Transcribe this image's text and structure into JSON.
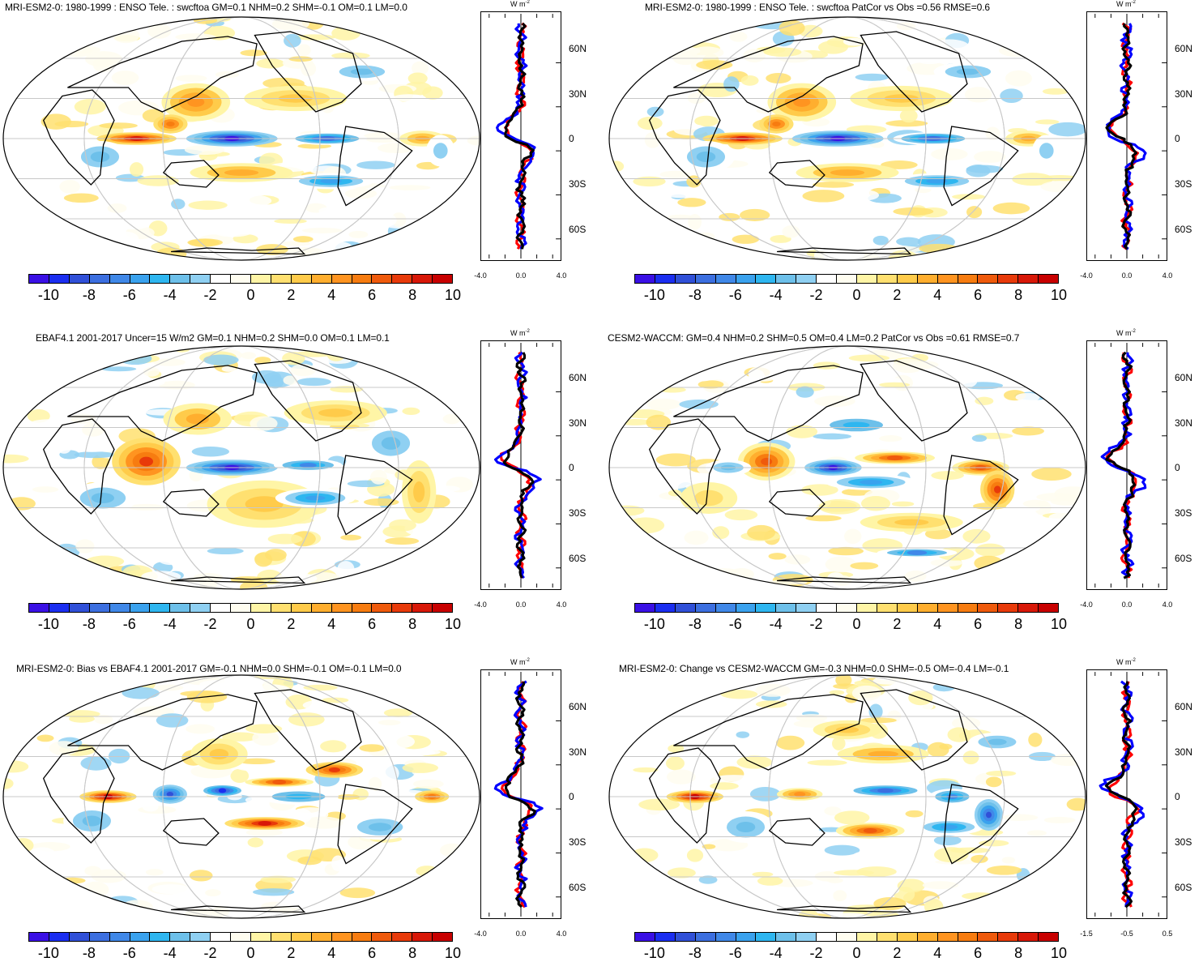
{
  "colorbar": {
    "colors": [
      "#3a10e5",
      "#1b2ef0",
      "#3050d8",
      "#3c6fe0",
      "#4088e8",
      "#3aa2ee",
      "#2eb6f0",
      "#6dc0ea",
      "#8fd0f2",
      "#ffffff",
      "#fffdf0",
      "#fff5a6",
      "#ffe070",
      "#ffcb4a",
      "#ffae2e",
      "#ff9420",
      "#f77c10",
      "#ef5a0c",
      "#e83a0a",
      "#d81808",
      "#c80000"
    ],
    "labels": [
      "-10",
      "-8",
      "-6",
      "-4",
      "-2",
      "0",
      "2",
      "4",
      "6",
      "8",
      "10"
    ]
  },
  "zonal_axis": {
    "unit_base": "W m",
    "unit_exp": "-2",
    "lat_labels": [
      "60N",
      "30N",
      "0",
      "30S",
      "60S"
    ]
  },
  "series_colors": {
    "model": "#0000ff",
    "obs": "#ff0000",
    "black": "#000000"
  },
  "panels": [
    {
      "title": "MRI-ESM2-0: 1980-1999 : ENSO Tele. : swcftoa GM=0.1 NHM=0.2 SHM=-0.1 OM=0.1 LM=0.0",
      "zonal_xticks": [
        "-4.0",
        "0.0",
        "4.0"
      ],
      "pattern": "ens",
      "seed": 1
    },
    {
      "title": "MRI-ESM2-0: 1980-1999 : ENSO Tele. : swcftoa PatCor vs Obs =0.56 RMSE=0.6",
      "zonal_xticks": [
        "-4.0",
        "0.0",
        "4.0"
      ],
      "pattern": "ens",
      "seed": 2
    },
    {
      "title": "EBAF4.1 2001-2017 Uncer=15 W/m2 GM=0.1 NHM=0.2 SHM=0.0 OM=0.1 LM=0.1",
      "zonal_xticks": [
        "-4.0",
        "0.0",
        "4.0"
      ],
      "pattern": "obs",
      "seed": 3
    },
    {
      "title": "CESM2-WACCM: GM=0.4 NHM=0.2 SHM=0.5 OM=0.4 LM=0.2 PatCor vs Obs =0.61 RMSE=0.7",
      "zonal_xticks": [
        "-4.0",
        "0.0",
        "4.0"
      ],
      "pattern": "cesm",
      "seed": 4
    },
    {
      "title": "MRI-ESM2-0: Bias vs EBAF4.1 2001-2017 GM=-0.1 NHM=0.0 SHM=-0.1 OM=-0.1 LM=0.0",
      "zonal_xticks": [
        "-4.0",
        "0.0",
        "4.0"
      ],
      "pattern": "bias",
      "seed": 5
    },
    {
      "title": "MRI-ESM2-0: Change vs CESM2-WACCM GM=-0.3 NHM=0.0 SHM=-0.5 OM=-0.4 LM=-0.1",
      "zonal_xticks": [
        "-1.5",
        "-0.5",
        "0.5"
      ],
      "pattern": "change",
      "seed": 6
    }
  ]
}
